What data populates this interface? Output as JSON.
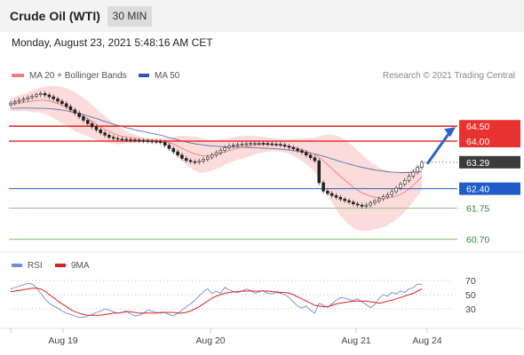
{
  "header": {
    "title": "Crude Oil (WTI)",
    "interval": "30 MIN"
  },
  "datetime": "Monday, August 23, 2021 5:48:16 AM CET",
  "legend": {
    "ma20": {
      "label": "MA 20 + Bollinger Bands",
      "color": "#f08080"
    },
    "ma50": {
      "label": "MA 50",
      "color": "#2a5aa8"
    },
    "rsi": {
      "label": "RSI",
      "color": "#6a8fd8"
    },
    "ma9": {
      "label": "9MA",
      "color": "#e02020"
    }
  },
  "copyright": "Research © 2021 Trading Central",
  "chart_data": [
    {
      "type": "candlestick",
      "y_range": [
        60.45,
        65.7
      ],
      "x_labels": [
        "Aug 19",
        "Aug 20",
        "Aug 21",
        "Aug 24"
      ],
      "levels": [
        {
          "value": 64.5,
          "label": "64.50",
          "style": "red"
        },
        {
          "value": 64.0,
          "label": "64.00",
          "style": "red"
        },
        {
          "value": 63.29,
          "label": "63.29",
          "style": "current"
        },
        {
          "value": 62.4,
          "label": "62.40",
          "style": "blue"
        },
        {
          "value": 61.75,
          "label": "61.75",
          "style": "green"
        },
        {
          "value": 60.7,
          "label": "60.70",
          "style": "green"
        }
      ],
      "close": [
        65.28,
        65.32,
        65.37,
        65.41,
        65.46,
        65.51,
        65.56,
        65.6,
        65.55,
        65.49,
        65.42,
        65.34,
        65.26,
        65.16,
        65.05,
        64.94,
        64.82,
        64.7,
        64.59,
        64.48,
        64.38,
        64.28,
        64.2,
        64.13,
        64.09,
        64.07,
        64.06,
        64.05,
        64.04,
        64.03,
        64.02,
        64.01,
        64.0,
        63.99,
        63.98,
        63.96,
        63.86,
        63.75,
        63.64,
        63.53,
        63.42,
        63.35,
        63.31,
        63.29,
        63.33,
        63.39,
        63.46,
        63.53,
        63.61,
        63.69,
        63.78,
        63.84,
        63.86,
        63.88,
        63.9,
        63.91,
        63.92,
        63.93,
        63.93,
        63.92,
        63.91,
        63.9,
        63.89,
        63.87,
        63.83,
        63.79,
        63.74,
        63.68,
        63.62,
        63.53,
        63.44,
        63.34,
        62.6,
        62.32,
        62.24,
        62.17,
        62.11,
        62.05,
        62.0,
        61.95,
        61.89,
        61.85,
        61.81,
        61.85,
        61.92,
        61.99,
        62.06,
        62.13,
        62.2,
        62.3,
        62.42,
        62.55,
        62.68,
        62.82,
        62.96,
        63.12,
        63.29
      ],
      "ma20": [
        65.23,
        65.25,
        65.27,
        65.3,
        65.32,
        65.34,
        65.36,
        65.38,
        65.37,
        65.35,
        65.31,
        65.26,
        65.21,
        65.15,
        65.07,
        64.99,
        64.91,
        64.83,
        64.75,
        64.66,
        64.57,
        64.48,
        64.4,
        64.33,
        64.26,
        64.2,
        64.16,
        64.13,
        64.1,
        64.08,
        64.06,
        64.05,
        64.05,
        64.04,
        64.03,
        64.02,
        63.99,
        63.95,
        63.9,
        63.83,
        63.76,
        63.69,
        63.63,
        63.57,
        63.53,
        63.51,
        63.51,
        63.52,
        63.55,
        63.58,
        63.63,
        63.68,
        63.72,
        63.76,
        63.79,
        63.82,
        63.84,
        63.86,
        63.88,
        63.88,
        63.88,
        63.88,
        63.87,
        63.86,
        63.84,
        63.82,
        63.79,
        63.75,
        63.71,
        63.66,
        63.61,
        63.55,
        63.45,
        63.34,
        63.21,
        63.08,
        62.94,
        62.81,
        62.69,
        62.57,
        62.45,
        62.35,
        62.26,
        62.2,
        62.15,
        62.12,
        62.09,
        62.08,
        62.09,
        62.11,
        62.15,
        62.21,
        62.29,
        62.39,
        62.52,
        62.65,
        62.8
      ],
      "bb_upper": [
        65.45,
        65.49,
        65.54,
        65.59,
        65.64,
        65.7,
        65.75,
        65.8,
        65.83,
        65.85,
        65.85,
        65.84,
        65.82,
        65.78,
        65.72,
        65.64,
        65.55,
        65.45,
        65.34,
        65.22,
        65.09,
        64.96,
        64.84,
        64.72,
        64.61,
        64.51,
        64.42,
        64.34,
        64.27,
        64.21,
        64.16,
        64.12,
        64.09,
        64.07,
        64.07,
        64.08,
        64.1,
        64.12,
        64.14,
        64.16,
        64.17,
        64.17,
        64.16,
        64.14,
        64.11,
        64.08,
        64.05,
        64.03,
        64.03,
        64.04,
        64.06,
        64.09,
        64.12,
        64.15,
        64.17,
        64.18,
        64.18,
        64.17,
        64.16,
        64.14,
        64.12,
        64.1,
        64.08,
        64.07,
        64.06,
        64.06,
        64.07,
        64.08,
        64.09,
        64.1,
        64.11,
        64.12,
        64.16,
        64.2,
        64.22,
        64.22,
        64.19,
        64.13,
        64.05,
        63.95,
        63.82,
        63.68,
        63.54,
        63.42,
        63.3,
        63.2,
        63.12,
        63.05,
        63.0,
        62.96,
        62.94,
        62.94,
        62.96,
        63.0,
        63.06,
        63.14,
        63.25
      ],
      "bb_lower": [
        65.01,
        65.01,
        65.0,
        65.01,
        65.0,
        64.98,
        64.97,
        64.96,
        64.91,
        64.85,
        64.77,
        64.68,
        64.6,
        64.52,
        64.42,
        64.34,
        64.27,
        64.21,
        64.16,
        64.1,
        64.05,
        64.0,
        63.96,
        63.94,
        63.91,
        63.89,
        63.9,
        63.92,
        63.93,
        63.95,
        63.96,
        63.98,
        64.01,
        64.01,
        63.99,
        63.96,
        63.88,
        63.78,
        63.66,
        63.5,
        63.35,
        63.21,
        63.1,
        63.0,
        62.95,
        62.94,
        62.97,
        63.01,
        63.07,
        63.12,
        63.2,
        63.27,
        63.32,
        63.37,
        63.41,
        63.46,
        63.5,
        63.55,
        63.6,
        63.62,
        63.64,
        63.66,
        63.66,
        63.65,
        63.62,
        63.58,
        63.51,
        63.42,
        63.33,
        63.22,
        63.11,
        62.98,
        62.74,
        62.48,
        62.2,
        61.94,
        61.69,
        61.49,
        61.33,
        61.19,
        61.08,
        61.02,
        60.98,
        60.98,
        61.0,
        61.04,
        61.06,
        61.11,
        61.18,
        61.26,
        61.36,
        61.48,
        61.62,
        61.78,
        61.98,
        62.16,
        62.35
      ],
      "ma50": [
        65.1,
        65.1,
        65.11,
        65.11,
        65.11,
        65.11,
        65.1,
        65.1,
        65.1,
        65.09,
        65.08,
        65.06,
        65.04,
        65.02,
        64.99,
        64.96,
        64.93,
        64.89,
        64.85,
        64.8,
        64.76,
        64.71,
        64.66,
        64.62,
        64.57,
        64.53,
        64.49,
        64.45,
        64.42,
        64.38,
        64.35,
        64.32,
        64.29,
        64.26,
        64.23,
        64.2,
        64.16,
        64.12,
        64.08,
        64.04,
        64.0,
        63.97,
        63.94,
        63.91,
        63.89,
        63.87,
        63.85,
        63.84,
        63.83,
        63.82,
        63.81,
        63.81,
        63.8,
        63.8,
        63.79,
        63.79,
        63.78,
        63.78,
        63.77,
        63.76,
        63.76,
        63.75,
        63.74,
        63.73,
        63.71,
        63.7,
        63.68,
        63.66,
        63.64,
        63.62,
        63.6,
        63.57,
        63.53,
        63.49,
        63.45,
        63.4,
        63.36,
        63.31,
        63.27,
        63.23,
        63.19,
        63.15,
        63.12,
        63.09,
        63.06,
        63.03,
        63.01,
        62.99,
        62.97,
        62.96,
        62.95,
        62.94,
        62.94,
        62.94,
        62.95,
        62.96,
        62.98
      ]
    },
    {
      "type": "line",
      "y_range": [
        0,
        100
      ],
      "y_ticks": [
        70,
        50,
        30
      ],
      "series": [
        {
          "name": "RSI",
          "values": [
            58,
            60,
            62,
            64,
            66,
            65,
            60,
            52,
            44,
            38,
            34,
            31,
            27,
            24,
            22,
            20,
            18,
            18,
            20,
            22,
            25,
            27,
            30,
            28,
            26,
            24,
            25,
            27,
            23,
            20,
            21,
            24,
            28,
            27,
            25,
            24,
            25,
            22,
            20,
            24,
            28,
            33,
            37,
            42,
            48,
            54,
            58,
            52,
            55,
            52,
            60,
            57,
            54,
            53,
            55,
            58,
            56,
            52,
            54,
            56,
            52,
            51,
            53,
            52,
            50,
            46,
            40,
            34,
            31,
            34,
            28,
            24,
            38,
            35,
            32,
            37,
            42,
            46,
            45,
            43,
            42,
            44,
            40,
            36,
            32,
            36,
            45,
            50,
            48,
            53,
            51,
            55,
            53,
            58,
            60,
            65,
            64
          ]
        },
        {
          "name": "9MA",
          "values": [
            54,
            55,
            56,
            57,
            58,
            59,
            59,
            58,
            55,
            50,
            46,
            41,
            37,
            33,
            29,
            26,
            24,
            22,
            21,
            21,
            21,
            21,
            22,
            23,
            24,
            24,
            25,
            26,
            26,
            25,
            24,
            24,
            24,
            24,
            24,
            25,
            25,
            25,
            25,
            24,
            24,
            25,
            27,
            30,
            33,
            37,
            41,
            45,
            48,
            50,
            52,
            53,
            54,
            54,
            55,
            55,
            55,
            55,
            55,
            55,
            55,
            54,
            54,
            53,
            53,
            52,
            50,
            47,
            44,
            41,
            38,
            35,
            34,
            33,
            33,
            35,
            37,
            38,
            39,
            40,
            41,
            41,
            41,
            41,
            40,
            39,
            38,
            39,
            41,
            42,
            44,
            46,
            48,
            50,
            52,
            55,
            58
          ]
        }
      ],
      "x_labels": [
        "Aug 19",
        "Aug 20",
        "Aug 21",
        "Aug 24"
      ]
    }
  ]
}
